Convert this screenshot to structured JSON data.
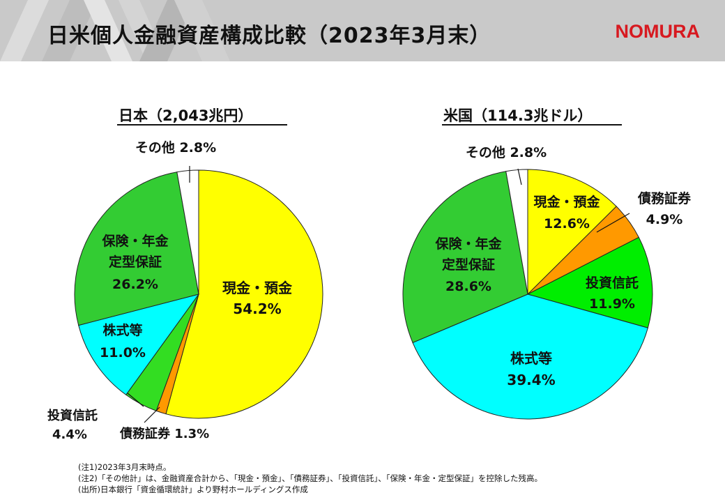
{
  "title": "日米個人金融資産構成比較（2023年3月末）",
  "brand": "NOMURA",
  "colors": {
    "header_bg": "#c9c9c9",
    "brand_red": "#d71920",
    "cash": "#ffff00",
    "bonds": "#ff9900",
    "trusts": "#33dd22",
    "stocks": "#00ffff",
    "insurance": "#33cc33",
    "other": "#ffffff"
  },
  "chart_data": [
    {
      "type": "pie",
      "title": "日本（2,043兆円）",
      "start": "12 o'clock, clockwise",
      "slices": [
        {
          "label": "現金・預金",
          "value": 54.2,
          "display": "54.2%",
          "color": "#ffff00"
        },
        {
          "label": "債務証券",
          "value": 1.3,
          "display": "1.3%",
          "color": "#ff9900"
        },
        {
          "label": "投資信託",
          "value": 4.4,
          "display": "4.4%",
          "color": "#33dd22"
        },
        {
          "label": "株式等",
          "value": 11.0,
          "display": "11.0%",
          "color": "#00ffff"
        },
        {
          "label": "保険・年金\n定型保証",
          "value": 26.2,
          "display": "26.2%",
          "color": "#33cc33"
        },
        {
          "label": "その他",
          "value": 2.8,
          "display": "2.8%",
          "color": "#ffffff"
        }
      ]
    },
    {
      "type": "pie",
      "title": "米国（114.3兆ドル）",
      "start": "12 o'clock, clockwise",
      "slices": [
        {
          "label": "現金・預金",
          "value": 12.6,
          "display": "12.6%",
          "color": "#ffff00"
        },
        {
          "label": "債務証券",
          "value": 4.9,
          "display": "4.9%",
          "color": "#ff9900"
        },
        {
          "label": "投資信託",
          "value": 11.9,
          "display": "11.9%",
          "color": "#00ee00"
        },
        {
          "label": "株式等",
          "value": 39.4,
          "display": "39.4%",
          "color": "#00ffff"
        },
        {
          "label": "保険・年金\n定型保証",
          "value": 28.6,
          "display": "28.6%",
          "color": "#33cc33"
        },
        {
          "label": "その他",
          "value": 2.8,
          "display": "2.8%",
          "color": "#ffffff"
        }
      ]
    }
  ],
  "notes": [
    "(注1)2023年3月末時点。",
    "(注2)「その他計」は、金融資産合計から、「現金・預金」、「債務証券」、「投資信託」、「保険・年金・定型保証」を控除した残高。",
    "(出所)日本銀行「資金循環統計」より野村ホールディングス作成"
  ]
}
